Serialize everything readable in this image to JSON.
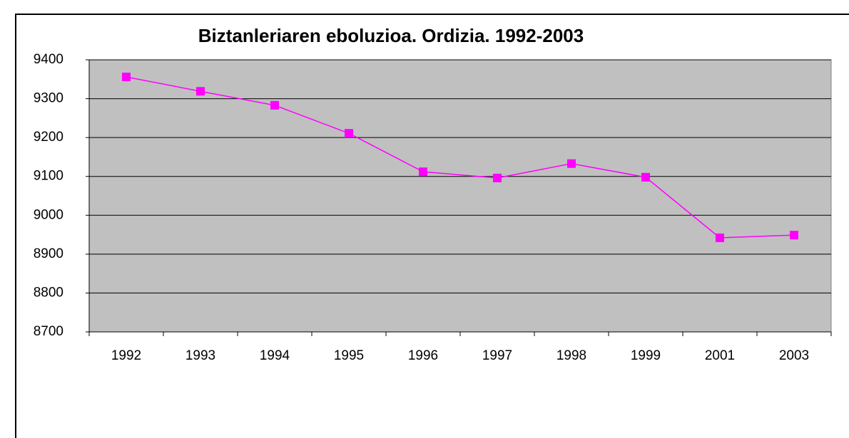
{
  "chart_data": {
    "type": "line",
    "title": "Biztanleriaren eboluzioa. Ordizia. 1992-2003",
    "categories": [
      "1992",
      "1993",
      "1994",
      "1995",
      "1996",
      "1997",
      "1998",
      "1999",
      "2001",
      "2003"
    ],
    "values": [
      9356,
      9319,
      9283,
      9211,
      9112,
      9096,
      9133,
      9098,
      8942,
      8949
    ],
    "color": "#ff00ff",
    "ylim": [
      8700,
      9400
    ],
    "yticks": [
      8700,
      8800,
      8900,
      9000,
      9100,
      9200,
      9300,
      9400
    ],
    "grid": true
  }
}
